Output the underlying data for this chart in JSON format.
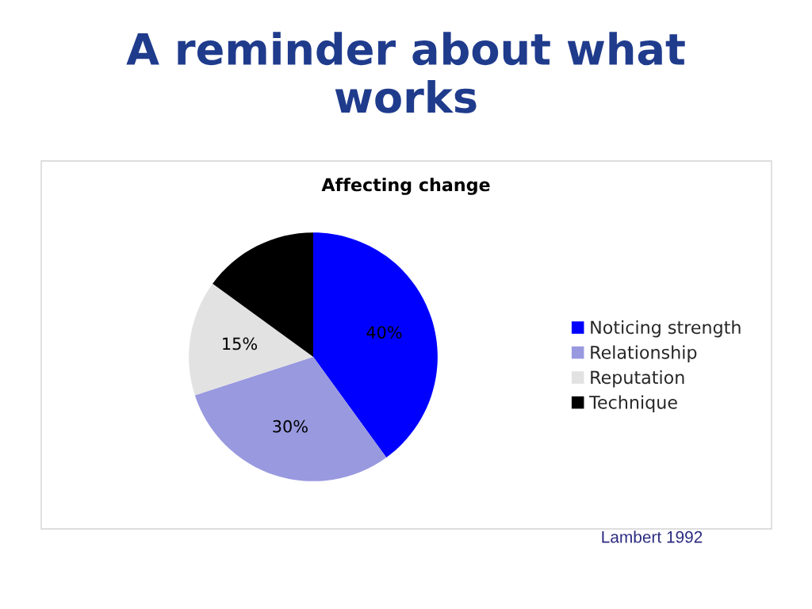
{
  "chart_data": {
    "type": "pie",
    "title": "A reminder about what works",
    "subtitle": "Affecting change",
    "categories": [
      "Noticing strength",
      "Relationship",
      "Reputation",
      "Technique"
    ],
    "values": [
      40,
      30,
      15,
      15
    ],
    "colors": [
      "#0000ff",
      "#9999e0",
      "#e2e2e2",
      "#000000"
    ],
    "value_labels": [
      "40%",
      "30%",
      "15%",
      null
    ],
    "legend": "right",
    "annotations": [
      "Lambert 1992"
    ]
  }
}
